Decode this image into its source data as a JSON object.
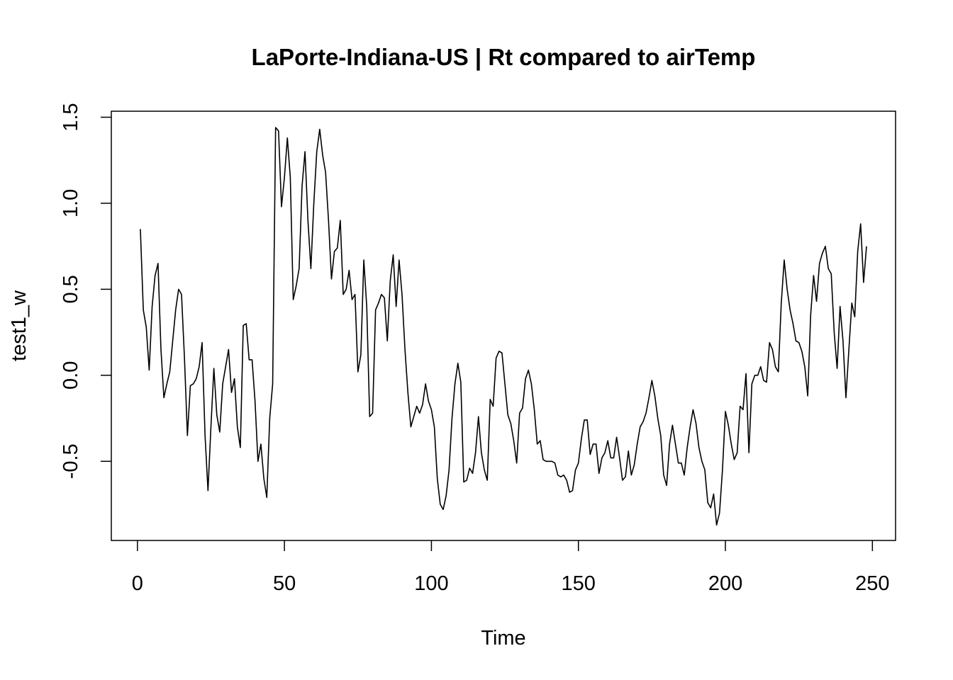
{
  "chart_data": {
    "type": "line",
    "title": "LaPorte-Indiana-US | Rt compared to airTemp",
    "x_label": "Time",
    "y_label": "test1_w",
    "xlim": [
      -8.88,
      257.88
    ],
    "ylim": [
      -0.96,
      1.535
    ],
    "xticks": [
      0,
      50,
      100,
      150,
      200,
      250
    ],
    "yticks": [
      -0.5,
      {
        "value": 0,
        "label": "0.0"
      },
      0.5,
      {
        "value": 1,
        "label": "1.0"
      },
      1.5
    ],
    "series": [
      {
        "color": "#000000",
        "x": [
          1,
          2,
          3,
          4,
          5,
          6,
          7,
          8,
          9,
          10,
          11,
          12,
          13,
          14,
          15,
          16,
          17,
          18,
          19,
          20,
          21,
          22,
          23,
          24,
          25,
          26,
          27,
          28,
          29,
          30,
          31,
          32,
          33,
          34,
          35,
          36,
          37,
          38,
          39,
          40,
          41,
          42,
          43,
          44,
          45,
          46,
          47,
          48,
          49,
          50,
          51,
          52,
          53,
          54,
          55,
          56,
          57,
          58,
          59,
          60,
          61,
          62,
          63,
          64,
          65,
          66,
          67,
          68,
          69,
          70,
          71,
          72,
          73,
          74,
          75,
          76,
          77,
          78,
          79,
          80,
          81,
          82,
          83,
          84,
          85,
          86,
          87,
          88,
          89,
          90,
          91,
          92,
          93,
          94,
          95,
          96,
          97,
          98,
          99,
          100,
          101,
          102,
          103,
          104,
          105,
          106,
          107,
          108,
          109,
          110,
          111,
          112,
          113,
          114,
          115,
          116,
          117,
          118,
          119,
          120,
          121,
          122,
          123,
          124,
          125,
          126,
          127,
          128,
          129,
          130,
          131,
          132,
          133,
          134,
          135,
          136,
          137,
          138,
          139,
          140,
          141,
          142,
          143,
          144,
          145,
          146,
          147,
          148,
          149,
          150,
          151,
          152,
          153,
          154,
          155,
          156,
          157,
          158,
          159,
          160,
          161,
          162,
          163,
          164,
          165,
          166,
          167,
          168,
          169,
          170,
          171,
          172,
          173,
          174,
          175,
          176,
          177,
          178,
          179,
          180,
          181,
          182,
          183,
          184,
          185,
          186,
          187,
          188,
          189,
          190,
          191,
          192,
          193,
          194,
          195,
          196,
          197,
          198,
          199,
          200,
          201,
          202,
          203,
          204,
          205,
          206,
          207,
          208,
          209,
          210,
          211,
          212,
          213,
          214,
          215,
          216,
          217,
          218,
          219,
          220,
          221,
          222,
          223,
          224,
          225,
          226,
          227,
          228,
          229,
          230,
          231,
          232,
          233,
          234,
          235,
          236,
          237,
          238,
          239,
          240,
          241,
          242,
          243,
          244,
          245,
          246,
          247,
          248
        ],
        "values": [
          0.85,
          0.38,
          0.28,
          0.03,
          0.4,
          0.58,
          0.65,
          0.15,
          -0.13,
          -0.05,
          0.02,
          0.2,
          0.38,
          0.5,
          0.47,
          0.1,
          -0.35,
          -0.06,
          -0.05,
          -0.02,
          0.05,
          0.19,
          -0.35,
          -0.67,
          -0.3,
          0.04,
          -0.23,
          -0.33,
          -0.05,
          0.05,
          0.15,
          -0.1,
          -0.02,
          -0.3,
          -0.42,
          0.29,
          0.3,
          0.09,
          0.09,
          -0.15,
          -0.5,
          -0.4,
          -0.6,
          -0.71,
          -0.25,
          -0.05,
          1.44,
          1.42,
          0.98,
          1.15,
          1.38,
          1.15,
          0.44,
          0.52,
          0.62,
          1.1,
          1.3,
          0.9,
          0.62,
          1.0,
          1.3,
          1.43,
          1.28,
          1.18,
          0.9,
          0.56,
          0.72,
          0.74,
          0.9,
          0.47,
          0.5,
          0.61,
          0.44,
          0.47,
          0.02,
          0.12,
          0.67,
          0.4,
          -0.24,
          -0.22,
          0.38,
          0.42,
          0.47,
          0.45,
          0.2,
          0.55,
          0.7,
          0.4,
          0.67,
          0.47,
          0.15,
          -0.1,
          -0.3,
          -0.24,
          -0.18,
          -0.22,
          -0.17,
          -0.05,
          -0.15,
          -0.2,
          -0.3,
          -0.6,
          -0.75,
          -0.78,
          -0.7,
          -0.55,
          -0.25,
          -0.05,
          0.07,
          -0.04,
          -0.62,
          -0.61,
          -0.54,
          -0.57,
          -0.45,
          -0.24,
          -0.45,
          -0.55,
          -0.61,
          -0.14,
          -0.18,
          0.1,
          0.14,
          0.13,
          -0.05,
          -0.23,
          -0.28,
          -0.38,
          -0.51,
          -0.22,
          -0.19,
          -0.02,
          0.03,
          -0.05,
          -0.2,
          -0.4,
          -0.38,
          -0.49,
          -0.5,
          -0.5,
          -0.5,
          -0.51,
          -0.58,
          -0.59,
          -0.58,
          -0.61,
          -0.68,
          -0.67,
          -0.55,
          -0.51,
          -0.37,
          -0.26,
          -0.26,
          -0.46,
          -0.4,
          -0.4,
          -0.57,
          -0.48,
          -0.45,
          -0.38,
          -0.48,
          -0.48,
          -0.36,
          -0.48,
          -0.61,
          -0.59,
          -0.44,
          -0.58,
          -0.52,
          -0.4,
          -0.3,
          -0.27,
          -0.22,
          -0.13,
          -0.03,
          -0.12,
          -0.25,
          -0.35,
          -0.58,
          -0.64,
          -0.4,
          -0.29,
          -0.4,
          -0.51,
          -0.51,
          -0.58,
          -0.42,
          -0.3,
          -0.2,
          -0.28,
          -0.42,
          -0.5,
          -0.55,
          -0.74,
          -0.77,
          -0.69,
          -0.87,
          -0.8,
          -0.55,
          -0.21,
          -0.29,
          -0.4,
          -0.49,
          -0.45,
          -0.18,
          -0.2,
          0.01,
          -0.45,
          -0.05,
          0.0,
          0.0,
          0.05,
          -0.03,
          -0.04,
          0.19,
          0.15,
          0.05,
          0.02,
          0.42,
          0.67,
          0.5,
          0.38,
          0.3,
          0.2,
          0.19,
          0.14,
          0.05,
          -0.12,
          0.35,
          0.58,
          0.43,
          0.65,
          0.71,
          0.75,
          0.62,
          0.59,
          0.25,
          0.04,
          0.4,
          0.2,
          -0.13,
          0.15,
          0.42,
          0.34,
          0.72,
          0.88,
          0.54,
          0.75
        ]
      }
    ]
  }
}
